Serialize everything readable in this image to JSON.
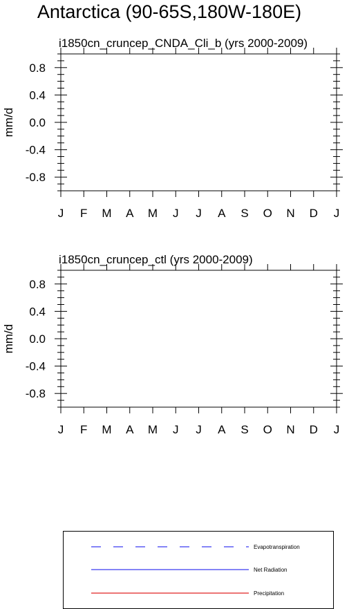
{
  "figure": {
    "title": "Antarctica (90-65S,180W-180E)"
  },
  "chart_data": [
    {
      "type": "line",
      "title": "i1850cn_cruncep_CNDA_Cli_b (yrs 2000-2009)",
      "ylabel": "mm/d",
      "xlabel": "",
      "x_tick_labels": [
        "J",
        "F",
        "M",
        "A",
        "M",
        "J",
        "J",
        "A",
        "S",
        "O",
        "N",
        "D",
        "J"
      ],
      "y_tick_labels": [
        "0.8",
        "0.4",
        "0.0",
        "-0.4",
        "-0.8"
      ],
      "y_ticks": [
        0.8,
        0.4,
        0.0,
        -0.4,
        -0.8
      ],
      "ylim": [
        -1.0,
        1.0
      ],
      "grid": false,
      "series": [
        {
          "name": "Evapotranspiration",
          "values": []
        },
        {
          "name": "Net Radiation",
          "values": []
        },
        {
          "name": "Precipitation",
          "values": []
        }
      ]
    },
    {
      "type": "line",
      "title": "i1850cn_cruncep_ctl (yrs 2000-2009)",
      "ylabel": "mm/d",
      "xlabel": "",
      "x_tick_labels": [
        "J",
        "F",
        "M",
        "A",
        "M",
        "J",
        "J",
        "A",
        "S",
        "O",
        "N",
        "D",
        "J"
      ],
      "y_tick_labels": [
        "0.8",
        "0.4",
        "0.0",
        "-0.4",
        "-0.8"
      ],
      "y_ticks": [
        0.8,
        0.4,
        0.0,
        -0.4,
        -0.8
      ],
      "ylim": [
        -1.0,
        1.0
      ],
      "grid": false,
      "series": [
        {
          "name": "Evapotranspiration",
          "values": []
        },
        {
          "name": "Net Radiation",
          "values": []
        },
        {
          "name": "Precipitation",
          "values": []
        }
      ]
    }
  ],
  "legend": {
    "placement": "bottom",
    "items": [
      {
        "label": "Evapotranspiration",
        "color": "#3a3af0",
        "style": "dashed"
      },
      {
        "label": "Net Radiation",
        "color": "#3a3af0",
        "style": "solid"
      },
      {
        "label": "Precipitation",
        "color": "#e02020",
        "style": "solid"
      }
    ]
  }
}
